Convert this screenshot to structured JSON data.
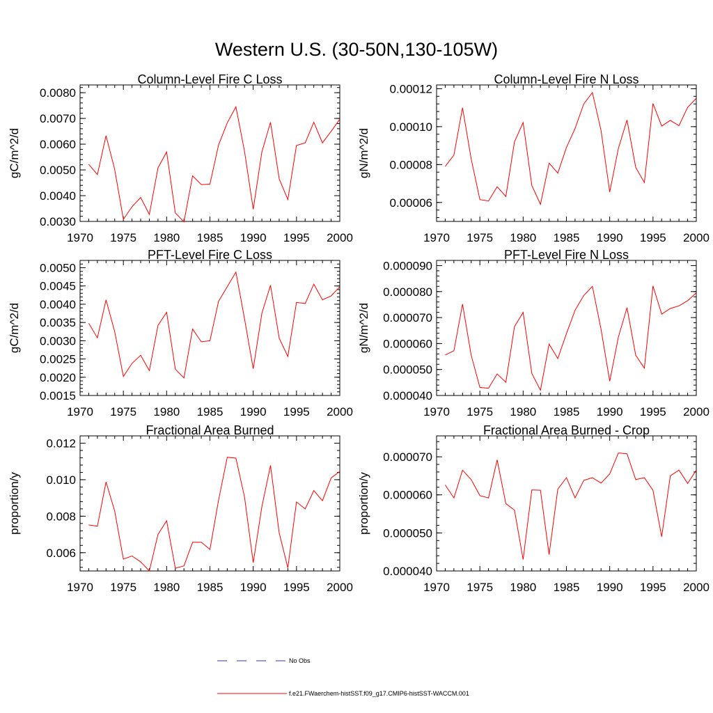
{
  "page": {
    "title": "Western U.S. (30-50N,130-105W)"
  },
  "chart_data": [
    {
      "type": "line",
      "title": "Column-Level Fire C Loss",
      "ylabel": "gC/m^2/d",
      "xlim": [
        1970,
        2000
      ],
      "ylim": [
        0.003,
        0.0083
      ],
      "xticks": [
        "1970",
        "1975",
        "1980",
        "1985",
        "1990",
        "1995",
        "2000"
      ],
      "yticks": [
        "0.0030",
        "0.0040",
        "0.0050",
        "0.0060",
        "0.0070",
        "0.0080"
      ],
      "x": [
        1971,
        1972,
        1973,
        1974,
        1975,
        1976,
        1977,
        1978,
        1979,
        1980,
        1981,
        1982,
        1983,
        1984,
        1985,
        1986,
        1987,
        1988,
        1989,
        1990,
        1991,
        1992,
        1993,
        1994,
        1995,
        1996,
        1997,
        1998,
        1999,
        2000
      ],
      "series": [
        {
          "name": "f.e21.FWaerchem-histSST.f09_g17.CMIP6-histSST-WACCM.001",
          "color": "#ff0000",
          "values": [
            0.00522,
            0.00482,
            0.00633,
            0.00502,
            0.00308,
            0.00357,
            0.00393,
            0.00327,
            0.00508,
            0.0057,
            0.00333,
            0.00298,
            0.00477,
            0.00443,
            0.00445,
            0.00597,
            0.00683,
            0.00745,
            0.00572,
            0.00347,
            0.0057,
            0.00685,
            0.00465,
            0.00385,
            0.00595,
            0.00605,
            0.00685,
            0.00605,
            0.0065,
            0.00697
          ]
        }
      ]
    },
    {
      "type": "line",
      "title": "Column-Level Fire N Loss",
      "ylabel": "gN/m^2/d",
      "xlim": [
        1970,
        2000
      ],
      "ylim": [
        5e-05,
        0.000122
      ],
      "xticks": [
        "1970",
        "1975",
        "1980",
        "1985",
        "1990",
        "1995",
        "2000"
      ],
      "yticks": [
        "0.00006",
        "0.00008",
        "0.00010",
        "0.00012"
      ],
      "x": [
        1971,
        1972,
        1973,
        1974,
        1975,
        1976,
        1977,
        1978,
        1979,
        1980,
        1981,
        1982,
        1983,
        1984,
        1985,
        1986,
        1987,
        1988,
        1989,
        1990,
        1991,
        1992,
        1993,
        1994,
        1995,
        1996,
        1997,
        1998,
        1999,
        2000
      ],
      "series": [
        {
          "name": "f.e21.FWaerchem-histSST.f09_g17.CMIP6-histSST-WACCM.001",
          "color": "#ff0000",
          "values": [
            7.9e-05,
            8.5e-05,
            0.00011,
            8.3e-05,
            6.15e-05,
            6.08e-05,
            6.83e-05,
            6.32e-05,
            9.2e-05,
            0.0001022,
            6.9e-05,
            5.9e-05,
            8.08e-05,
            7.55e-05,
            8.9e-05,
            9.9e-05,
            0.000112,
            0.000118,
            9.8e-05,
            6.55e-05,
            8.85e-05,
            0.0001035,
            7.85e-05,
            7.05e-05,
            0.0001122,
            0.0001003,
            0.0001033,
            0.0001005,
            0.0001102,
            0.000115
          ]
        }
      ]
    },
    {
      "type": "line",
      "title": "PFT-Level Fire C Loss",
      "ylabel": "gC/m^2/d",
      "xlim": [
        1970,
        2000
      ],
      "ylim": [
        0.0015,
        0.0052
      ],
      "xticks": [
        "1970",
        "1975",
        "1980",
        "1985",
        "1990",
        "1995",
        "2000"
      ],
      "yticks": [
        "0.0015",
        "0.0020",
        "0.0025",
        "0.0030",
        "0.0035",
        "0.0040",
        "0.0045",
        "0.0050"
      ],
      "x": [
        1971,
        1972,
        1973,
        1974,
        1975,
        1976,
        1977,
        1978,
        1979,
        1980,
        1981,
        1982,
        1983,
        1984,
        1985,
        1986,
        1987,
        1988,
        1989,
        1990,
        1991,
        1992,
        1993,
        1994,
        1995,
        1996,
        1997,
        1998,
        1999,
        2000
      ],
      "series": [
        {
          "name": "f.e21.FWaerchem-histSST.f09_g17.CMIP6-histSST-WACCM.001",
          "color": "#ff0000",
          "values": [
            0.00348,
            0.00308,
            0.00412,
            0.00325,
            0.00202,
            0.00238,
            0.0026,
            0.00218,
            0.00342,
            0.00378,
            0.00222,
            0.00198,
            0.00332,
            0.00297,
            0.003,
            0.00408,
            0.00448,
            0.00488,
            0.0036,
            0.00223,
            0.00375,
            0.00452,
            0.00307,
            0.00257,
            0.00405,
            0.00402,
            0.00455,
            0.00412,
            0.00423,
            0.00448
          ]
        }
      ]
    },
    {
      "type": "line",
      "title": "PFT-Level Fire N Loss",
      "ylabel": "gN/m^2/d",
      "xlim": [
        1970,
        2000
      ],
      "ylim": [
        4e-05,
        9.2e-05
      ],
      "xticks": [
        "1970",
        "1975",
        "1980",
        "1985",
        "1990",
        "1995",
        "2000"
      ],
      "yticks": [
        "0.000040",
        "0.000050",
        "0.000060",
        "0.000070",
        "0.000080",
        "0.000090"
      ],
      "x": [
        1971,
        1972,
        1973,
        1974,
        1975,
        1976,
        1977,
        1978,
        1979,
        1980,
        1981,
        1982,
        1983,
        1984,
        1985,
        1986,
        1987,
        1988,
        1989,
        1990,
        1991,
        1992,
        1993,
        1994,
        1995,
        1996,
        1997,
        1998,
        1999,
        2000
      ],
      "series": [
        {
          "name": "f.e21.FWaerchem-histSST.f09_g17.CMIP6-histSST-WACCM.001",
          "color": "#ff0000",
          "values": [
            5.56e-05,
            5.72e-05,
            7.52e-05,
            5.55e-05,
            4.31e-05,
            4.28e-05,
            4.83e-05,
            4.51e-05,
            6.65e-05,
            7.2e-05,
            4.85e-05,
            4.2e-05,
            5.98e-05,
            5.42e-05,
            6.38e-05,
            7.28e-05,
            7.85e-05,
            8.2e-05,
            6.55e-05,
            4.55e-05,
            6.25e-05,
            7.38e-05,
            5.55e-05,
            5.05e-05,
            8.22e-05,
            7.13e-05,
            7.35e-05,
            7.45e-05,
            7.65e-05,
            7.95e-05
          ]
        }
      ]
    },
    {
      "type": "line",
      "title": "Fractional Area Burned",
      "ylabel": "proportion/y",
      "xlim": [
        1970,
        2000
      ],
      "ylim": [
        0.005,
        0.0124
      ],
      "xticks": [
        "1970",
        "1975",
        "1980",
        "1985",
        "1990",
        "1995",
        "2000"
      ],
      "yticks": [
        "0.006",
        "0.008",
        "0.010",
        "0.012"
      ],
      "x": [
        1971,
        1972,
        1973,
        1974,
        1975,
        1976,
        1977,
        1978,
        1979,
        1980,
        1981,
        1982,
        1983,
        1984,
        1985,
        1986,
        1987,
        1988,
        1989,
        1990,
        1991,
        1992,
        1993,
        1994,
        1995,
        1996,
        1997,
        1998,
        1999,
        2000
      ],
      "series": [
        {
          "name": "f.e21.FWaerchem-histSST.f09_g17.CMIP6-histSST-WACCM.001",
          "color": "#ff0000",
          "values": [
            0.00752,
            0.00745,
            0.00988,
            0.00828,
            0.00565,
            0.00582,
            0.0055,
            0.005,
            0.007,
            0.00775,
            0.00515,
            0.00528,
            0.00657,
            0.00657,
            0.00618,
            0.00888,
            0.01123,
            0.01118,
            0.00905,
            0.00545,
            0.00852,
            0.01078,
            0.00708,
            0.00517,
            0.00878,
            0.0084,
            0.0094,
            0.00885,
            0.0101,
            0.01045
          ]
        }
      ]
    },
    {
      "type": "line",
      "title": "Fractional Area Burned - Crop",
      "ylabel": "proportion/y",
      "xlim": [
        1970,
        2000
      ],
      "ylim": [
        4e-05,
        7.55e-05
      ],
      "xticks": [
        "1970",
        "1975",
        "1980",
        "1985",
        "1990",
        "1995",
        "2000"
      ],
      "yticks": [
        "0.000040",
        "0.000050",
        "0.000060",
        "0.000070"
      ],
      "x": [
        1971,
        1972,
        1973,
        1974,
        1975,
        1976,
        1977,
        1978,
        1979,
        1980,
        1981,
        1982,
        1983,
        1984,
        1985,
        1986,
        1987,
        1988,
        1989,
        1990,
        1991,
        1992,
        1993,
        1994,
        1995,
        1996,
        1997,
        1998,
        1999,
        2000
      ],
      "series": [
        {
          "name": "f.e21.FWaerchem-histSST.f09_g17.CMIP6-histSST-WACCM.001",
          "color": "#ff0000",
          "values": [
            6.26e-05,
            5.92e-05,
            6.65e-05,
            6.4e-05,
            5.98e-05,
            5.92e-05,
            6.92e-05,
            5.77e-05,
            5.6e-05,
            4.3e-05,
            6.13e-05,
            6.12e-05,
            4.43e-05,
            6.15e-05,
            6.45e-05,
            5.92e-05,
            6.38e-05,
            6.45e-05,
            6.31e-05,
            6.55e-05,
            7.1e-05,
            7.08e-05,
            6.4e-05,
            6.45e-05,
            6.12e-05,
            4.9e-05,
            6.5e-05,
            6.65e-05,
            6.3e-05,
            6.65e-05
          ]
        }
      ]
    }
  ],
  "legend": {
    "obs_label": "No Obs",
    "obs_color": "#3333aa",
    "model_label": "f.e21.FWaerchem-histSST.f09_g17.CMIP6-histSST-WACCM.001",
    "model_color": "#ff0000"
  }
}
